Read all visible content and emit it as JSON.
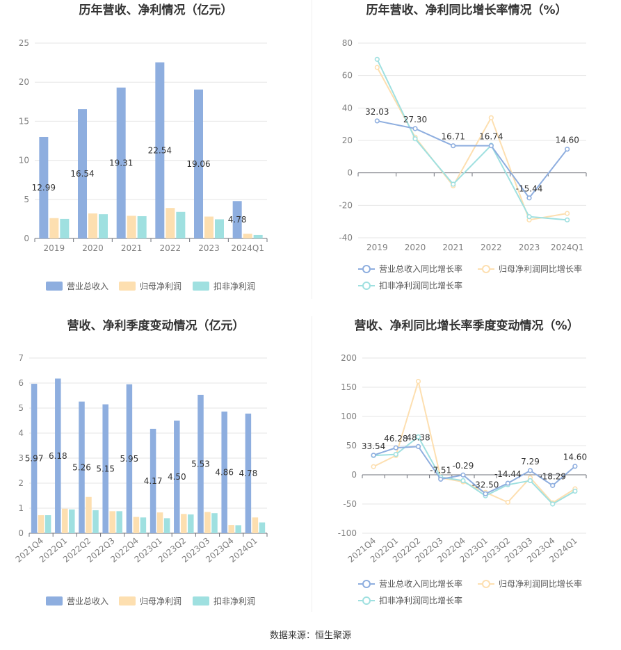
{
  "source_note": "数据来源：恒生聚源",
  "colors": {
    "revenue": "#8eaedf",
    "net_profit": "#fddfb0",
    "deducted_profit": "#9fe0e0",
    "line_revenue": "#8eaedf",
    "line_net": "#fddfb0",
    "line_deducted": "#9fe0e0",
    "grid": "#e6e6e6",
    "axis": "#6e7079"
  },
  "chart_data": [
    {
      "id": "annual-amount",
      "type": "bar",
      "title": "历年营收、净利情况（亿元）",
      "categories": [
        "2019",
        "2020",
        "2021",
        "2022",
        "2023",
        "2024Q1"
      ],
      "series": [
        {
          "name": "营业总收入",
          "values": [
            12.99,
            16.54,
            19.31,
            22.54,
            19.06,
            4.78
          ],
          "labels": [
            "12.99",
            "16.54",
            "19.31",
            "22.54",
            "19.06",
            "4.78"
          ]
        },
        {
          "name": "归母净利润",
          "values": [
            2.6,
            3.2,
            2.9,
            3.9,
            2.8,
            0.6
          ]
        },
        {
          "name": "扣非净利润",
          "values": [
            2.5,
            3.1,
            2.85,
            3.4,
            2.45,
            0.45
          ]
        }
      ],
      "yticks": [
        "0",
        "5",
        "10",
        "15",
        "20",
        "25"
      ],
      "ylim": [
        0,
        25
      ],
      "legend": [
        "营业总收入",
        "归母净利润",
        "扣非净利润"
      ]
    },
    {
      "id": "annual-growth",
      "type": "line",
      "title": "历年营收、净利同比增长率情况（%）",
      "categories": [
        "2019",
        "2020",
        "2021",
        "2022",
        "2023",
        "2024Q1"
      ],
      "series": [
        {
          "name": "营业总收入同比增长率",
          "values": [
            32.03,
            27.3,
            16.71,
            16.74,
            -15.44,
            14.6
          ],
          "labels": [
            "32.03",
            "27.30",
            "16.71",
            "16.74",
            "-15.44",
            "14.60"
          ]
        },
        {
          "name": "归母净利润同比增长率",
          "values": [
            65,
            22,
            -8,
            34,
            -29,
            -25
          ]
        },
        {
          "name": "扣非净利润同比增长率",
          "values": [
            70,
            21,
            -7,
            17,
            -27,
            -29
          ]
        }
      ],
      "yticks": [
        "-40",
        "-20",
        "0",
        "20",
        "40",
        "60",
        "80"
      ],
      "ylim": [
        -40,
        80
      ],
      "legend": [
        "营业总收入同比增长率",
        "归母净利润同比增长率",
        "扣非净利润同比增长率"
      ]
    },
    {
      "id": "quarterly-amount",
      "type": "bar",
      "title": "营收、净利季度变动情况（亿元）",
      "categories": [
        "2021Q4",
        "2022Q1",
        "2022Q2",
        "2022Q3",
        "2022Q4",
        "2023Q1",
        "2023Q2",
        "2023Q3",
        "2023Q4",
        "2024Q1"
      ],
      "series": [
        {
          "name": "营业总收入",
          "values": [
            5.97,
            6.18,
            5.26,
            5.15,
            5.95,
            4.17,
            4.5,
            5.53,
            4.86,
            4.78
          ],
          "labels": [
            "5.97",
            "6.18",
            "5.26",
            "5.15",
            "5.95",
            "4.17",
            "4.50",
            "5.53",
            "4.86",
            "4.78"
          ]
        },
        {
          "name": "归母净利润",
          "values": [
            0.72,
            0.98,
            1.45,
            0.88,
            0.65,
            0.83,
            0.77,
            0.85,
            0.33,
            0.63
          ]
        },
        {
          "name": "扣非净利润",
          "values": [
            0.72,
            0.95,
            0.92,
            0.88,
            0.63,
            0.6,
            0.75,
            0.8,
            0.32,
            0.43
          ]
        }
      ],
      "yticks": [
        "0",
        "1",
        "2",
        "3",
        "4",
        "5",
        "6",
        "7"
      ],
      "ylim": [
        0,
        7
      ],
      "legend": [
        "营业总收入",
        "归母净利润",
        "扣非净利润"
      ]
    },
    {
      "id": "quarterly-growth",
      "type": "line",
      "title": "营收、净利同比增长率季度变动情况（%）",
      "categories": [
        "2021Q4",
        "2022Q1",
        "2022Q2",
        "2022Q3",
        "2022Q4",
        "2023Q1",
        "2023Q2",
        "2023Q3",
        "2023Q4",
        "2024Q1"
      ],
      "series": [
        {
          "name": "营业总收入同比增长率",
          "values": [
            33.54,
            46.28,
            48.38,
            -7.51,
            -0.29,
            -32.5,
            -14.44,
            7.29,
            -18.29,
            14.6
          ],
          "labels": [
            "33.54",
            "46.28",
            "48.38",
            "-7.51",
            "-0.29",
            "-32.50",
            "-14.44",
            "7.29",
            "-18.29",
            "14.60"
          ]
        },
        {
          "name": "归母净利润同比增长率",
          "values": [
            14,
            33,
            160,
            -5,
            -12,
            -30,
            -47,
            -5,
            -48,
            -24
          ]
        },
        {
          "name": "扣非净利润同比增长率",
          "values": [
            33,
            35,
            65,
            -4,
            -10,
            -36,
            -17,
            -10,
            -50,
            -28
          ]
        }
      ],
      "yticks": [
        "-100",
        "-50",
        "0",
        "50",
        "100",
        "150",
        "200"
      ],
      "ylim": [
        -100,
        200
      ],
      "legend": [
        "营业总收入同比增长率",
        "归母净利润同比增长率",
        "扣非净利润同比增长率"
      ]
    }
  ]
}
